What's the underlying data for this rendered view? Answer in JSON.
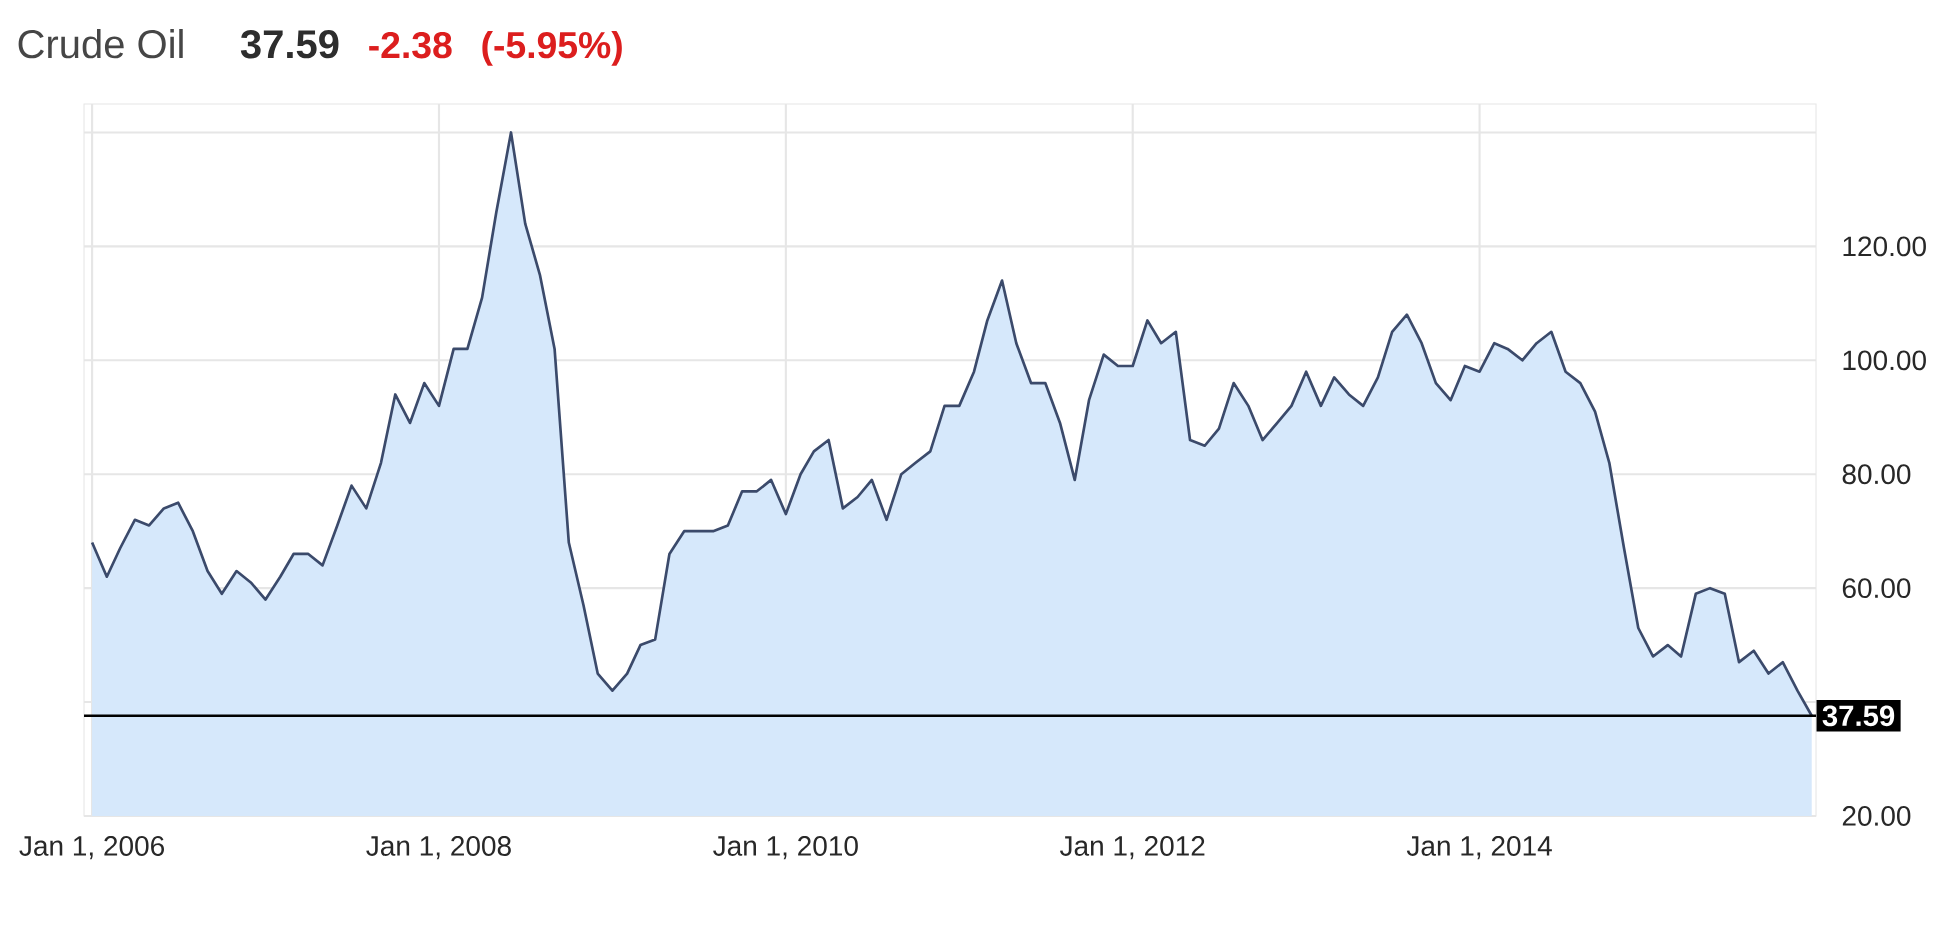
{
  "chart_data": {
    "type": "area",
    "title": "Crude Oil",
    "annotations": [
      "37.59",
      "-2.38",
      "(-5.95%)"
    ],
    "x": [
      "2006-01",
      "2006-02",
      "2006-03",
      "2006-04",
      "2006-05",
      "2006-06",
      "2006-07",
      "2006-08",
      "2006-09",
      "2006-10",
      "2006-11",
      "2006-12",
      "2007-01",
      "2007-02",
      "2007-03",
      "2007-04",
      "2007-05",
      "2007-06",
      "2007-07",
      "2007-08",
      "2007-09",
      "2007-10",
      "2007-11",
      "2007-12",
      "2008-01",
      "2008-02",
      "2008-03",
      "2008-04",
      "2008-05",
      "2008-06",
      "2008-07",
      "2008-08",
      "2008-09",
      "2008-10",
      "2008-11",
      "2008-12",
      "2009-01",
      "2009-02",
      "2009-03",
      "2009-04",
      "2009-05",
      "2009-06",
      "2009-07",
      "2009-08",
      "2009-09",
      "2009-10",
      "2009-11",
      "2009-12",
      "2010-01",
      "2010-02",
      "2010-03",
      "2010-04",
      "2010-05",
      "2010-06",
      "2010-07",
      "2010-08",
      "2010-09",
      "2010-10",
      "2010-11",
      "2010-12",
      "2011-01",
      "2011-02",
      "2011-03",
      "2011-04",
      "2011-05",
      "2011-06",
      "2011-07",
      "2011-08",
      "2011-09",
      "2011-10",
      "2011-11",
      "2011-12",
      "2012-01",
      "2012-02",
      "2012-03",
      "2012-04",
      "2012-05",
      "2012-06",
      "2012-07",
      "2012-08",
      "2012-09",
      "2012-10",
      "2012-11",
      "2012-12",
      "2013-01",
      "2013-02",
      "2013-03",
      "2013-04",
      "2013-05",
      "2013-06",
      "2013-07",
      "2013-08",
      "2013-09",
      "2013-10",
      "2013-11",
      "2013-12",
      "2014-01",
      "2014-02",
      "2014-03",
      "2014-04",
      "2014-05",
      "2014-06",
      "2014-07",
      "2014-08",
      "2014-09",
      "2014-10",
      "2014-11",
      "2014-12",
      "2015-01",
      "2015-02",
      "2015-03",
      "2015-04",
      "2015-05",
      "2015-06",
      "2015-07",
      "2015-08",
      "2015-09",
      "2015-10",
      "2015-11",
      "2015-12"
    ],
    "series": [
      {
        "color": "#3b4a6b",
        "values": [
          68,
          62,
          67,
          72,
          71,
          74,
          75,
          70,
          63,
          59,
          63,
          61,
          58,
          62,
          66,
          66,
          64,
          71,
          78,
          74,
          82,
          94,
          89,
          96,
          92,
          102,
          102,
          111,
          126,
          140,
          124,
          115,
          102,
          68,
          57,
          45,
          42,
          45,
          50,
          51,
          66,
          70,
          70,
          70,
          71,
          77,
          77,
          79,
          73,
          80,
          84,
          86,
          74,
          76,
          79,
          72,
          80,
          82,
          84,
          92,
          92,
          98,
          107,
          114,
          103,
          96,
          96,
          89,
          79,
          93,
          101,
          99,
          99,
          107,
          103,
          105,
          86,
          85,
          88,
          96,
          92,
          86,
          89,
          92,
          98,
          92,
          97,
          94,
          92,
          97,
          105,
          108,
          103,
          96,
          93,
          99,
          98,
          103,
          102,
          100,
          103,
          105,
          98,
          96,
          91,
          82,
          67,
          53,
          48,
          50,
          48,
          59,
          60,
          59,
          47,
          49,
          45,
          47,
          42,
          37.59
        ]
      }
    ],
    "xlim": [
      "2005-12-15",
      "2015-12-10"
    ],
    "xticks": [
      {
        "value": "2006-01-01",
        "label": "Jan 1, 2006"
      },
      {
        "value": "2008-01-01",
        "label": "Jan 1, 2008"
      },
      {
        "value": "2010-01-01",
        "label": "Jan 1, 2010"
      },
      {
        "value": "2012-01-01",
        "label": "Jan 1, 2012"
      },
      {
        "value": "2014-01-01",
        "label": "Jan 1, 2014"
      }
    ],
    "ylim": [
      20,
      145
    ],
    "yticks": [
      {
        "value": 20,
        "label": "20.00"
      },
      {
        "value": 40,
        "label": null
      },
      {
        "value": 60,
        "label": "60.00"
      },
      {
        "value": 80,
        "label": "80.00"
      },
      {
        "value": 100,
        "label": "100.00"
      },
      {
        "value": 120,
        "label": "120.00"
      },
      {
        "value": 140,
        "label": null
      }
    ],
    "ref_lines": [
      {
        "axis": "y",
        "value": 37.59,
        "label": "37.59",
        "color": "#000000"
      }
    ],
    "grid": true
  }
}
